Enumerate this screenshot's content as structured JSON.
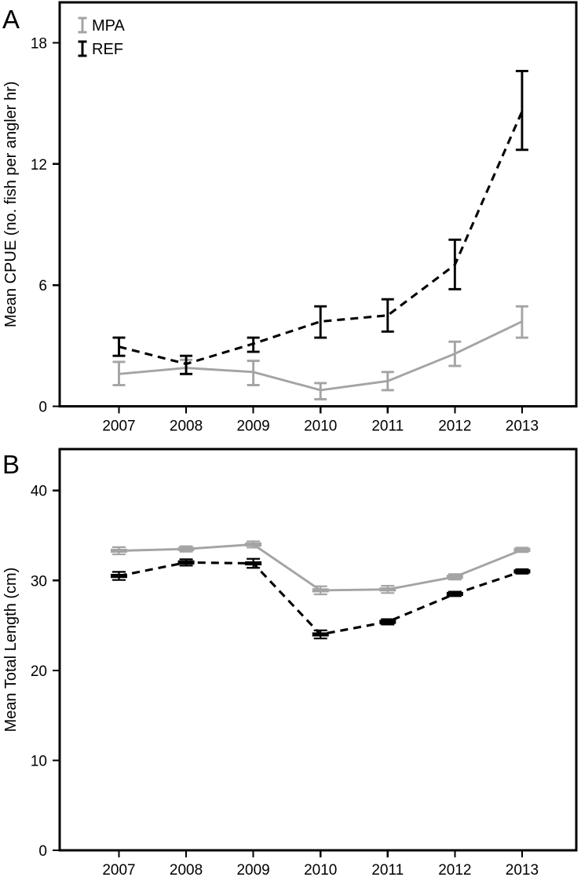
{
  "figure": {
    "background": "#ffffff",
    "mpa_color": "#a4a4a4",
    "ref_color": "#000000"
  },
  "chart_data": [
    {
      "type": "line",
      "panel_label": "A",
      "title": "",
      "xlabel": "",
      "ylabel": "Mean CPUE (no. fish per angler hr)",
      "x": [
        2007,
        2008,
        2009,
        2010,
        2011,
        2012,
        2013
      ],
      "ylim": [
        0,
        20
      ],
      "yticks": [
        0,
        6,
        12,
        18
      ],
      "grid": false,
      "legend_position": "top-left",
      "legend": [
        {
          "label": "MPA",
          "color": "#a4a4a4"
        },
        {
          "label": "REF",
          "color": "#000000"
        }
      ],
      "series": [
        {
          "name": "MPA",
          "color": "#a4a4a4",
          "style": "solid",
          "marker": "none",
          "values": [
            1.6,
            1.9,
            1.7,
            0.8,
            1.25,
            2.6,
            4.2
          ],
          "err_minus": [
            0.55,
            0.3,
            0.65,
            0.45,
            0.45,
            0.6,
            0.8
          ],
          "err_plus": [
            0.6,
            0.4,
            0.55,
            0.35,
            0.45,
            0.6,
            0.75
          ]
        },
        {
          "name": "REF",
          "color": "#000000",
          "style": "dashed",
          "marker": "none",
          "values": [
            2.95,
            2.1,
            3.1,
            4.2,
            4.5,
            7.0,
            14.6
          ],
          "err_minus": [
            0.45,
            0.5,
            0.4,
            0.8,
            0.8,
            1.2,
            1.9
          ],
          "err_plus": [
            0.45,
            0.4,
            0.3,
            0.75,
            0.8,
            1.25,
            2.0
          ]
        }
      ]
    },
    {
      "type": "line",
      "panel_label": "B",
      "title": "",
      "xlabel": "",
      "ylabel": "Mean Total Length (cm)",
      "x": [
        2007,
        2008,
        2009,
        2010,
        2011,
        2012,
        2013
      ],
      "ylim": [
        0,
        44.6
      ],
      "yticks": [
        0,
        10,
        20,
        30,
        40
      ],
      "grid": false,
      "legend_position": "none",
      "legend": [],
      "series": [
        {
          "name": "MPA",
          "color": "#a4a4a4",
          "style": "solid",
          "marker": "hdash",
          "values": [
            33.3,
            33.5,
            34.0,
            28.9,
            29.0,
            30.4,
            33.4
          ],
          "err_minus": [
            0.4,
            0.3,
            0.35,
            0.45,
            0.4,
            0.3,
            0.25
          ],
          "err_plus": [
            0.4,
            0.3,
            0.35,
            0.45,
            0.4,
            0.3,
            0.25
          ]
        },
        {
          "name": "REF",
          "color": "#000000",
          "style": "dashed",
          "marker": "hdash",
          "values": [
            30.5,
            32.0,
            31.9,
            24.0,
            25.4,
            28.5,
            31.0
          ],
          "err_minus": [
            0.45,
            0.35,
            0.5,
            0.45,
            0.3,
            0.25,
            0.25
          ],
          "err_plus": [
            0.45,
            0.35,
            0.5,
            0.45,
            0.3,
            0.25,
            0.25
          ]
        }
      ]
    }
  ]
}
